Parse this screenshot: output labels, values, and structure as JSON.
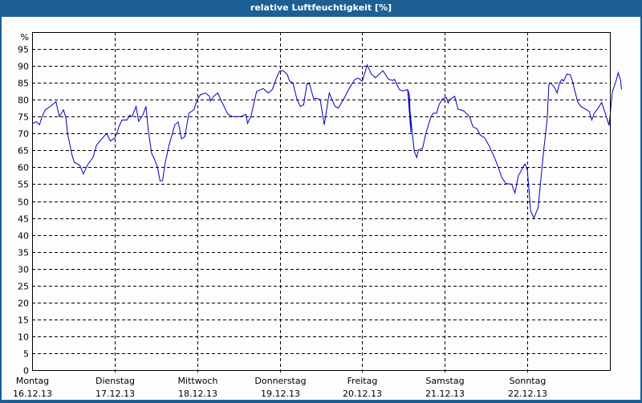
{
  "window": {
    "title": "relative Luftfeuchtigkeit [%]"
  },
  "colors": {
    "titlebar": "#1c5f94",
    "background": "#fcfdfc",
    "line": "#0000c0",
    "grid": "#000000"
  },
  "chart_data": {
    "type": "line",
    "title": "relative Luftfeuchtigkeit [%]",
    "xlabel": "",
    "ylabel": "%",
    "ylim": [
      0,
      100
    ],
    "yticks": [
      0,
      5,
      10,
      15,
      20,
      25,
      30,
      35,
      40,
      45,
      50,
      55,
      60,
      65,
      70,
      75,
      80,
      85,
      90,
      95
    ],
    "grid": true,
    "legend": null,
    "categories": [
      {
        "day": "Montag",
        "date": "16.12.13"
      },
      {
        "day": "Dienstag",
        "date": "17.12.13"
      },
      {
        "day": "Mittwoch",
        "date": "18.12.13"
      },
      {
        "day": "Donnerstag",
        "date": "19.12.13"
      },
      {
        "day": "Freitag",
        "date": "20.12.13"
      },
      {
        "day": "Samstag",
        "date": "21.12.13"
      },
      {
        "day": "Sonntag",
        "date": "22.12.13"
      }
    ],
    "x_unit": "days since Montag 16.12.13 00:00",
    "series": [
      {
        "name": "relative Luftfeuchtigkeit",
        "points": [
          [
            0.01,
            73
          ],
          [
            0.05,
            73.5
          ],
          [
            0.09,
            72.6
          ],
          [
            0.12,
            75
          ],
          [
            0.16,
            77
          ],
          [
            0.22,
            78
          ],
          [
            0.29,
            79.4
          ],
          [
            0.33,
            75
          ],
          [
            0.38,
            77
          ],
          [
            0.41,
            74.6
          ],
          [
            0.43,
            70
          ],
          [
            0.48,
            64
          ],
          [
            0.51,
            61.5
          ],
          [
            0.55,
            61
          ],
          [
            0.58,
            60.5
          ],
          [
            0.62,
            58
          ],
          [
            0.68,
            61
          ],
          [
            0.74,
            63
          ],
          [
            0.78,
            66.5
          ],
          [
            0.83,
            68
          ],
          [
            0.9,
            70
          ],
          [
            0.95,
            67.8
          ],
          [
            1.0,
            68.6
          ],
          [
            1.04,
            71
          ],
          [
            1.05,
            72
          ],
          [
            1.09,
            74
          ],
          [
            1.15,
            74
          ],
          [
            1.18,
            75.4
          ],
          [
            1.21,
            75
          ],
          [
            1.26,
            78
          ],
          [
            1.29,
            73.6
          ],
          [
            1.34,
            75.4
          ],
          [
            1.38,
            78
          ],
          [
            1.41,
            70.6
          ],
          [
            1.45,
            64
          ],
          [
            1.48,
            62.6
          ],
          [
            1.52,
            60
          ],
          [
            1.55,
            56
          ],
          [
            1.58,
            56
          ],
          [
            1.61,
            61
          ],
          [
            1.66,
            66.6
          ],
          [
            1.73,
            72.6
          ],
          [
            1.77,
            73.4
          ],
          [
            1.81,
            68.4
          ],
          [
            1.85,
            69
          ],
          [
            1.9,
            76
          ],
          [
            1.96,
            77
          ],
          [
            2.0,
            80
          ],
          [
            2.04,
            81.5
          ],
          [
            2.1,
            82
          ],
          [
            2.15,
            81
          ],
          [
            2.16,
            79.6
          ],
          [
            2.2,
            81
          ],
          [
            2.25,
            82
          ],
          [
            2.29,
            79.8
          ],
          [
            2.36,
            76.3
          ],
          [
            2.38,
            75.6
          ],
          [
            2.43,
            75
          ],
          [
            2.53,
            75
          ],
          [
            2.59,
            75.7
          ],
          [
            2.61,
            73
          ],
          [
            2.65,
            75
          ],
          [
            2.72,
            82.5
          ],
          [
            2.8,
            83.3
          ],
          [
            2.86,
            82
          ],
          [
            2.91,
            83
          ],
          [
            2.97,
            87
          ],
          [
            3.0,
            88.5
          ],
          [
            3.04,
            88.6
          ],
          [
            3.09,
            87.5
          ],
          [
            3.12,
            85.5
          ],
          [
            3.16,
            85
          ],
          [
            3.21,
            80
          ],
          [
            3.25,
            78
          ],
          [
            3.29,
            78.5
          ],
          [
            3.33,
            84.7
          ],
          [
            3.36,
            84.7
          ],
          [
            3.41,
            80.4
          ],
          [
            3.45,
            80.4
          ],
          [
            3.49,
            80
          ],
          [
            3.54,
            72.6
          ],
          [
            3.6,
            82
          ],
          [
            3.67,
            78
          ],
          [
            3.71,
            77.5
          ],
          [
            3.78,
            80.4
          ],
          [
            3.84,
            83.3
          ],
          [
            3.91,
            86
          ],
          [
            3.95,
            86.4
          ],
          [
            4.0,
            85.5
          ],
          [
            4.06,
            90.3
          ],
          [
            4.11,
            87.6
          ],
          [
            4.16,
            86.5
          ],
          [
            4.25,
            88.6
          ],
          [
            4.32,
            86
          ],
          [
            4.37,
            85.7
          ],
          [
            4.39,
            86
          ],
          [
            4.45,
            83
          ],
          [
            4.49,
            82.6
          ],
          [
            4.55,
            83
          ],
          [
            4.57,
            81.5
          ],
          [
            4.59,
            70.2
          ],
          [
            4.55,
            83
          ],
          [
            4.63,
            64.8
          ],
          [
            4.66,
            62.9
          ],
          [
            4.68,
            65.2
          ],
          [
            4.73,
            65.5
          ],
          [
            4.77,
            70
          ],
          [
            4.83,
            74.8
          ],
          [
            4.86,
            76
          ],
          [
            4.9,
            76
          ],
          [
            4.93,
            78.5
          ],
          [
            4.97,
            80.2
          ],
          [
            5.02,
            80.7
          ],
          [
            5.04,
            79
          ],
          [
            5.06,
            80
          ],
          [
            5.12,
            81
          ],
          [
            5.16,
            77.2
          ],
          [
            5.23,
            76.7
          ],
          [
            5.3,
            75
          ],
          [
            5.34,
            72
          ],
          [
            5.39,
            71.4
          ],
          [
            5.43,
            69.5
          ],
          [
            5.48,
            68.8
          ],
          [
            5.54,
            66.2
          ],
          [
            5.6,
            63
          ],
          [
            5.64,
            60.5
          ],
          [
            5.69,
            57
          ],
          [
            5.74,
            55.2
          ],
          [
            5.81,
            55
          ],
          [
            5.85,
            52.4
          ],
          [
            5.89,
            57.4
          ],
          [
            5.97,
            61
          ],
          [
            6.0,
            59.3
          ],
          [
            6.04,
            47
          ],
          [
            6.08,
            45
          ],
          [
            6.13,
            48
          ],
          [
            6.2,
            65.5
          ],
          [
            6.24,
            74
          ],
          [
            6.26,
            84.5
          ],
          [
            6.28,
            85
          ],
          [
            6.33,
            83.6
          ],
          [
            6.36,
            82
          ],
          [
            6.39,
            85
          ],
          [
            6.42,
            86
          ],
          [
            6.44,
            85.5
          ],
          [
            6.48,
            87.6
          ],
          [
            6.52,
            87.4
          ],
          [
            6.54,
            86
          ],
          [
            6.61,
            79.3
          ],
          [
            6.65,
            78
          ],
          [
            6.72,
            77
          ],
          [
            6.75,
            76.5
          ],
          [
            6.78,
            74
          ],
          [
            6.81,
            76
          ],
          [
            6.86,
            77.6
          ],
          [
            6.9,
            79.2
          ],
          [
            6.94,
            76.3
          ],
          [
            6.99,
            72.4
          ],
          [
            7.03,
            82.3
          ],
          [
            7.08,
            86
          ],
          [
            7.1,
            88
          ],
          [
            7.13,
            85.7
          ],
          [
            7.14,
            83
          ]
        ]
      }
    ]
  }
}
